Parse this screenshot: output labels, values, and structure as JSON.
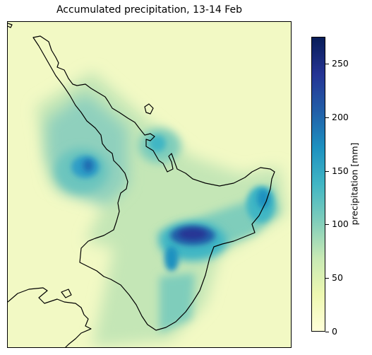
{
  "title": "Accumulated precipitation, 13-14 Feb",
  "colorbar": {
    "label": "precipitation [mm]",
    "colormap": "YlGnBu",
    "range": [
      0,
      275
    ],
    "ticks": [
      {
        "value": 0,
        "label": "0"
      },
      {
        "value": 50,
        "label": "50"
      },
      {
        "value": 100,
        "label": "100"
      },
      {
        "value": 150,
        "label": "150"
      },
      {
        "value": 200,
        "label": "200"
      },
      {
        "value": 250,
        "label": "250"
      }
    ],
    "colors": [
      "#ffffd9",
      "#edf8b1",
      "#c7e9b4",
      "#7fcdbb",
      "#41b6c4",
      "#1d91c0",
      "#225ea8",
      "#253494",
      "#081d58"
    ]
  },
  "map": {
    "region": "North Island, New Zealand",
    "coastline_color": "#000000",
    "background_value_mm": 20
  }
}
